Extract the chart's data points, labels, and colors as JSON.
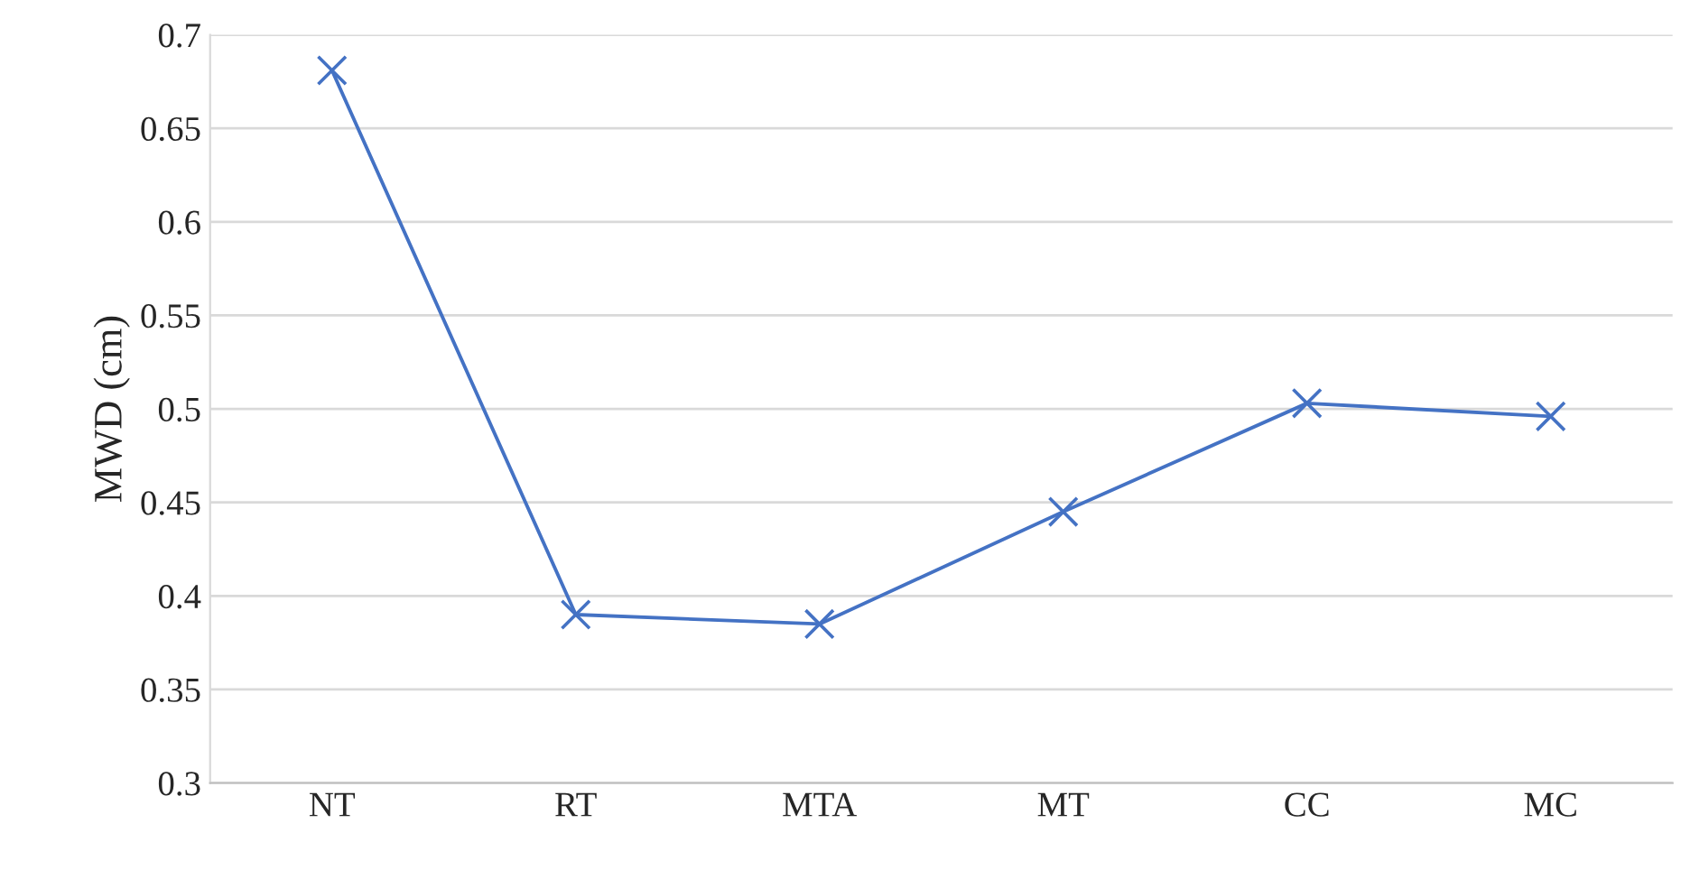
{
  "chart_data": {
    "type": "line",
    "ylabel": "MWD (cm)",
    "categories": [
      "NT",
      "RT",
      "MTA",
      "MT",
      "CC",
      "MC"
    ],
    "series": [
      {
        "color": "#4472c4",
        "values": [
          0.681,
          0.39,
          0.385,
          0.445,
          0.503,
          0.496
        ]
      }
    ],
    "ylim": [
      0.3,
      0.7
    ],
    "yticks": [
      0.3,
      0.35,
      0.4,
      0.45,
      0.5,
      0.55,
      0.6,
      0.65,
      0.7
    ],
    "grid": "y",
    "marker": "cross",
    "line_style": "solid"
  }
}
